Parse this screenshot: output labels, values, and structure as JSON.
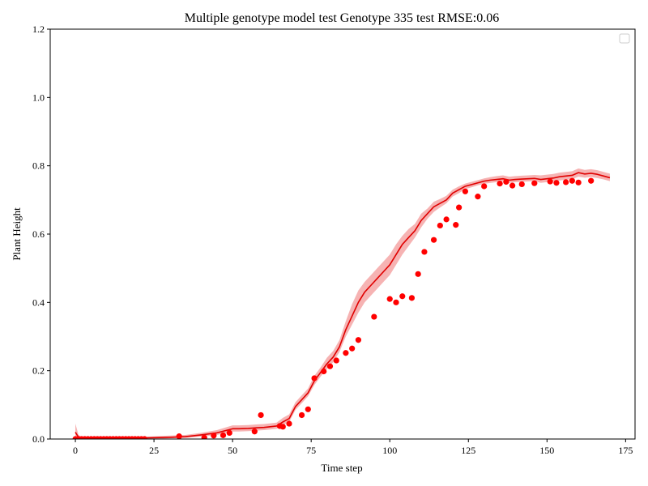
{
  "chart_data": {
    "type": "line",
    "title": "Multiple genotype model test Genotype 335 test RMSE:0.06",
    "xlabel": "Time step",
    "ylabel": "Plant Height",
    "xlim": [
      -8,
      178
    ],
    "ylim": [
      0,
      1.2
    ],
    "x_ticks": [
      0,
      25,
      50,
      75,
      100,
      125,
      150,
      175
    ],
    "x_tick_labels": [
      "0",
      "25",
      "50",
      "75",
      "100",
      "125",
      "150",
      "175"
    ],
    "y_ticks": [
      0.0,
      0.2,
      0.4,
      0.6,
      0.8,
      1.0,
      1.2
    ],
    "y_tick_labels": [
      "0.0",
      "0.2",
      "0.4",
      "0.6",
      "0.8",
      "1.0",
      "1.2"
    ],
    "grid": false,
    "legend": {
      "placement": "top-right",
      "entries": []
    },
    "colors": {
      "line": "#e00000",
      "band": "#f08080",
      "points": "#ff0000"
    },
    "series": [
      {
        "kind": "line_with_band",
        "x": [
          0,
          1,
          2,
          5,
          10,
          15,
          20,
          25,
          30,
          35,
          40,
          45,
          50,
          52,
          55,
          58,
          60,
          62,
          64,
          66,
          68,
          70,
          72,
          74,
          76,
          78,
          80,
          82,
          84,
          86,
          88,
          90,
          92,
          94,
          96,
          98,
          100,
          102,
          104,
          106,
          108,
          110,
          112,
          114,
          116,
          118,
          120,
          122,
          124,
          126,
          128,
          130,
          132,
          134,
          136,
          138,
          140,
          142,
          144,
          146,
          148,
          150,
          152,
          154,
          156,
          158,
          160,
          162,
          164,
          166,
          168,
          170
        ],
        "y": [
          0.02,
          0.005,
          0.002,
          0.002,
          0.002,
          0.002,
          0.003,
          0.004,
          0.005,
          0.007,
          0.012,
          0.018,
          0.03,
          0.03,
          0.031,
          0.033,
          0.034,
          0.036,
          0.038,
          0.05,
          0.06,
          0.095,
          0.115,
          0.135,
          0.17,
          0.195,
          0.22,
          0.24,
          0.27,
          0.32,
          0.36,
          0.4,
          0.43,
          0.45,
          0.47,
          0.49,
          0.51,
          0.54,
          0.57,
          0.59,
          0.61,
          0.64,
          0.66,
          0.68,
          0.69,
          0.7,
          0.72,
          0.73,
          0.74,
          0.745,
          0.75,
          0.755,
          0.758,
          0.76,
          0.762,
          0.758,
          0.76,
          0.761,
          0.762,
          0.763,
          0.76,
          0.762,
          0.764,
          0.768,
          0.77,
          0.772,
          0.78,
          0.776,
          0.778,
          0.775,
          0.77,
          0.765
        ],
        "lower": [
          0.0,
          0.0,
          0.0,
          0.0,
          0.0,
          0.0,
          0.0,
          0.0,
          0.002,
          0.003,
          0.007,
          0.012,
          0.022,
          0.022,
          0.023,
          0.025,
          0.026,
          0.028,
          0.03,
          0.04,
          0.05,
          0.085,
          0.105,
          0.125,
          0.158,
          0.183,
          0.205,
          0.225,
          0.255,
          0.3,
          0.335,
          0.37,
          0.4,
          0.42,
          0.44,
          0.46,
          0.48,
          0.51,
          0.54,
          0.565,
          0.59,
          0.62,
          0.645,
          0.665,
          0.678,
          0.69,
          0.71,
          0.72,
          0.732,
          0.737,
          0.743,
          0.747,
          0.75,
          0.752,
          0.754,
          0.75,
          0.752,
          0.753,
          0.754,
          0.755,
          0.75,
          0.752,
          0.754,
          0.757,
          0.759,
          0.761,
          0.768,
          0.765,
          0.767,
          0.764,
          0.76,
          0.755
        ],
        "upper": [
          0.045,
          0.012,
          0.006,
          0.005,
          0.005,
          0.005,
          0.006,
          0.008,
          0.01,
          0.012,
          0.018,
          0.026,
          0.04,
          0.04,
          0.041,
          0.043,
          0.044,
          0.046,
          0.048,
          0.062,
          0.072,
          0.108,
          0.128,
          0.148,
          0.185,
          0.21,
          0.238,
          0.258,
          0.29,
          0.345,
          0.395,
          0.435,
          0.46,
          0.48,
          0.5,
          0.52,
          0.54,
          0.57,
          0.595,
          0.615,
          0.63,
          0.66,
          0.675,
          0.695,
          0.703,
          0.712,
          0.73,
          0.74,
          0.748,
          0.753,
          0.758,
          0.763,
          0.767,
          0.77,
          0.772,
          0.768,
          0.77,
          0.771,
          0.772,
          0.773,
          0.772,
          0.774,
          0.776,
          0.78,
          0.782,
          0.784,
          0.792,
          0.788,
          0.79,
          0.787,
          0.782,
          0.777
        ]
      },
      {
        "kind": "scatter",
        "x": [
          0,
          1,
          2,
          3,
          4,
          5,
          6,
          7,
          8,
          9,
          10,
          11,
          12,
          13,
          14,
          15,
          16,
          17,
          18,
          19,
          20,
          21,
          22,
          33,
          41,
          44,
          47,
          49,
          57,
          59,
          65,
          66,
          68,
          72,
          74,
          76,
          79,
          81,
          83,
          86,
          88,
          90,
          95,
          100,
          102,
          104,
          107,
          109,
          111,
          114,
          116,
          118,
          121,
          122,
          124,
          128,
          130,
          135,
          137,
          139,
          142,
          146,
          151,
          153,
          156,
          158,
          160,
          164
        ],
        "y": [
          0.0,
          0.0,
          0.0,
          0.0,
          0.0,
          0.0,
          0.0,
          0.0,
          0.0,
          0.0,
          0.0,
          0.0,
          0.0,
          0.0,
          0.0,
          0.0,
          0.0,
          0.0,
          0.0,
          0.0,
          0.0,
          0.0,
          0.0,
          0.008,
          0.004,
          0.01,
          0.011,
          0.018,
          0.022,
          0.07,
          0.038,
          0.036,
          0.045,
          0.07,
          0.087,
          0.178,
          0.198,
          0.213,
          0.23,
          0.252,
          0.265,
          0.29,
          0.358,
          0.41,
          0.4,
          0.418,
          0.413,
          0.483,
          0.548,
          0.583,
          0.625,
          0.643,
          0.627,
          0.678,
          0.725,
          0.71,
          0.74,
          0.748,
          0.753,
          0.742,
          0.746,
          0.749,
          0.754,
          0.75,
          0.752,
          0.756,
          0.751,
          0.756
        ]
      }
    ]
  }
}
